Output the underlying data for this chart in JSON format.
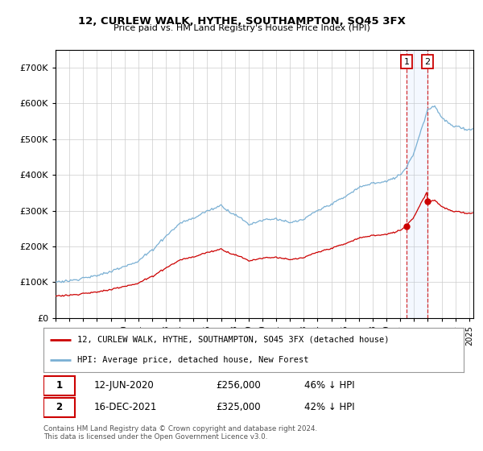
{
  "title": "12, CURLEW WALK, HYTHE, SOUTHAMPTON, SO45 3FX",
  "subtitle": "Price paid vs. HM Land Registry's House Price Index (HPI)",
  "hpi_label": "HPI: Average price, detached house, New Forest",
  "property_label": "12, CURLEW WALK, HYTHE, SOUTHAMPTON, SO45 3FX (detached house)",
  "footer": "Contains HM Land Registry data © Crown copyright and database right 2024.\nThis data is licensed under the Open Government Licence v3.0.",
  "hpi_color": "#7ab0d4",
  "property_color": "#cc0000",
  "sale1_year": 2020.45,
  "sale2_year": 2021.96,
  "sale1_price": 256000,
  "sale2_price": 325000,
  "ylim": [
    0,
    750000
  ],
  "xlim_min": 1995,
  "xlim_max": 2025.3,
  "background_color": "#ffffff"
}
